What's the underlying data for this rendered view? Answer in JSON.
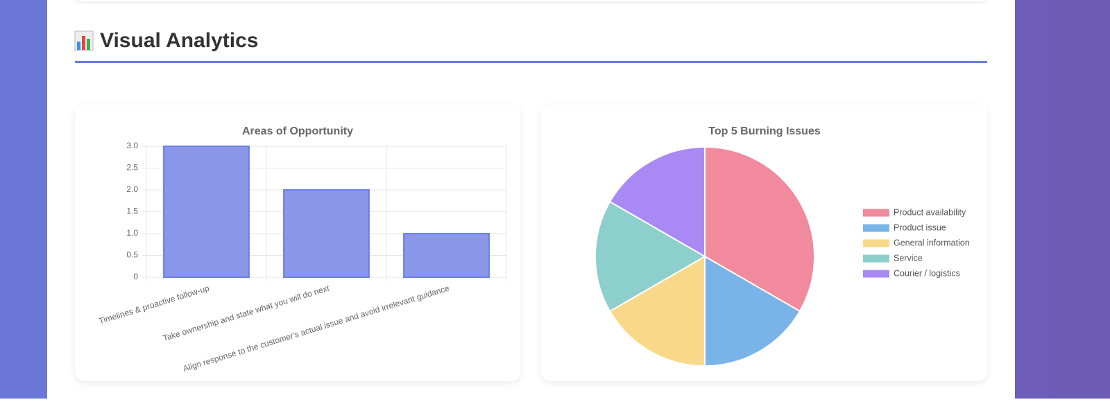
{
  "section_title": "Visual Analytics",
  "chart_data": [
    {
      "type": "bar",
      "title": "Areas of Opportunity",
      "categories": [
        "Timelines & proactive follow-up",
        "Take ownership and state what you will do next",
        "Align response to the customer's actual issue and avoid irrelevant guidance"
      ],
      "values": [
        3,
        2,
        1
      ],
      "color": "#8a97e9",
      "border_color": "#6a7fe8",
      "ylim": [
        0,
        3
      ],
      "yticks": [
        0,
        0.5,
        {
          "value": 1,
          "label": "1.0"
        },
        1.5,
        {
          "value": 2,
          "label": "2.0"
        },
        2.5,
        {
          "value": 3,
          "label": "3.0"
        }
      ],
      "grid": true
    },
    {
      "type": "pie",
      "title": "Top 5 Burning Issues",
      "categories": [
        "Product availability",
        "Product issue",
        "General information",
        "Service",
        "Courier / logistics"
      ],
      "values": [
        2,
        1,
        1,
        1,
        1
      ],
      "colors": [
        "#f08a9c",
        "#7ab3e8",
        "#f8d98a",
        "#8ccfcc",
        "#a98af5"
      ],
      "legend": "right"
    }
  ]
}
